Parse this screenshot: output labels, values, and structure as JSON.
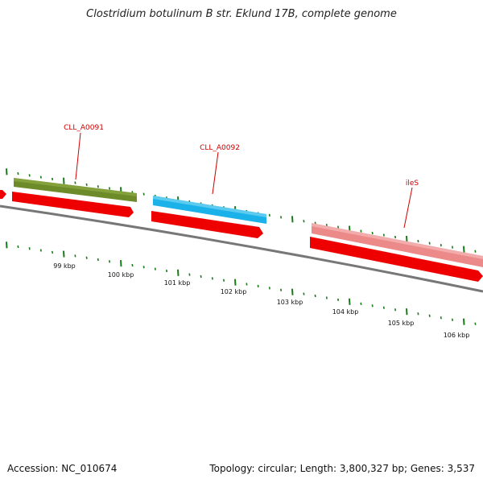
{
  "title": "Clostridium botulinum B str. Eklund 17B, complete genome",
  "footer": {
    "accession": "Accession: NC_010674",
    "summary": "Topology: circular; Length: 3,800,327 bp; Genes: 3,537"
  },
  "genes": [
    {
      "label": "CLL_A0091",
      "color": "#6e8b2a"
    },
    {
      "label": "CLL_A0092",
      "color": "#1ab2e8"
    },
    {
      "label": "ileS",
      "color": "#ec8a8a"
    }
  ],
  "cds_color": "#ee0000",
  "tick_color": "#1a7a1a",
  "backbone_color": "#777777",
  "kbp_ticks": [
    "99 kbp",
    "100 kbp",
    "101 kbp",
    "102 kbp",
    "103 kbp",
    "104 kbp",
    "105 kbp",
    "106 kbp"
  ]
}
